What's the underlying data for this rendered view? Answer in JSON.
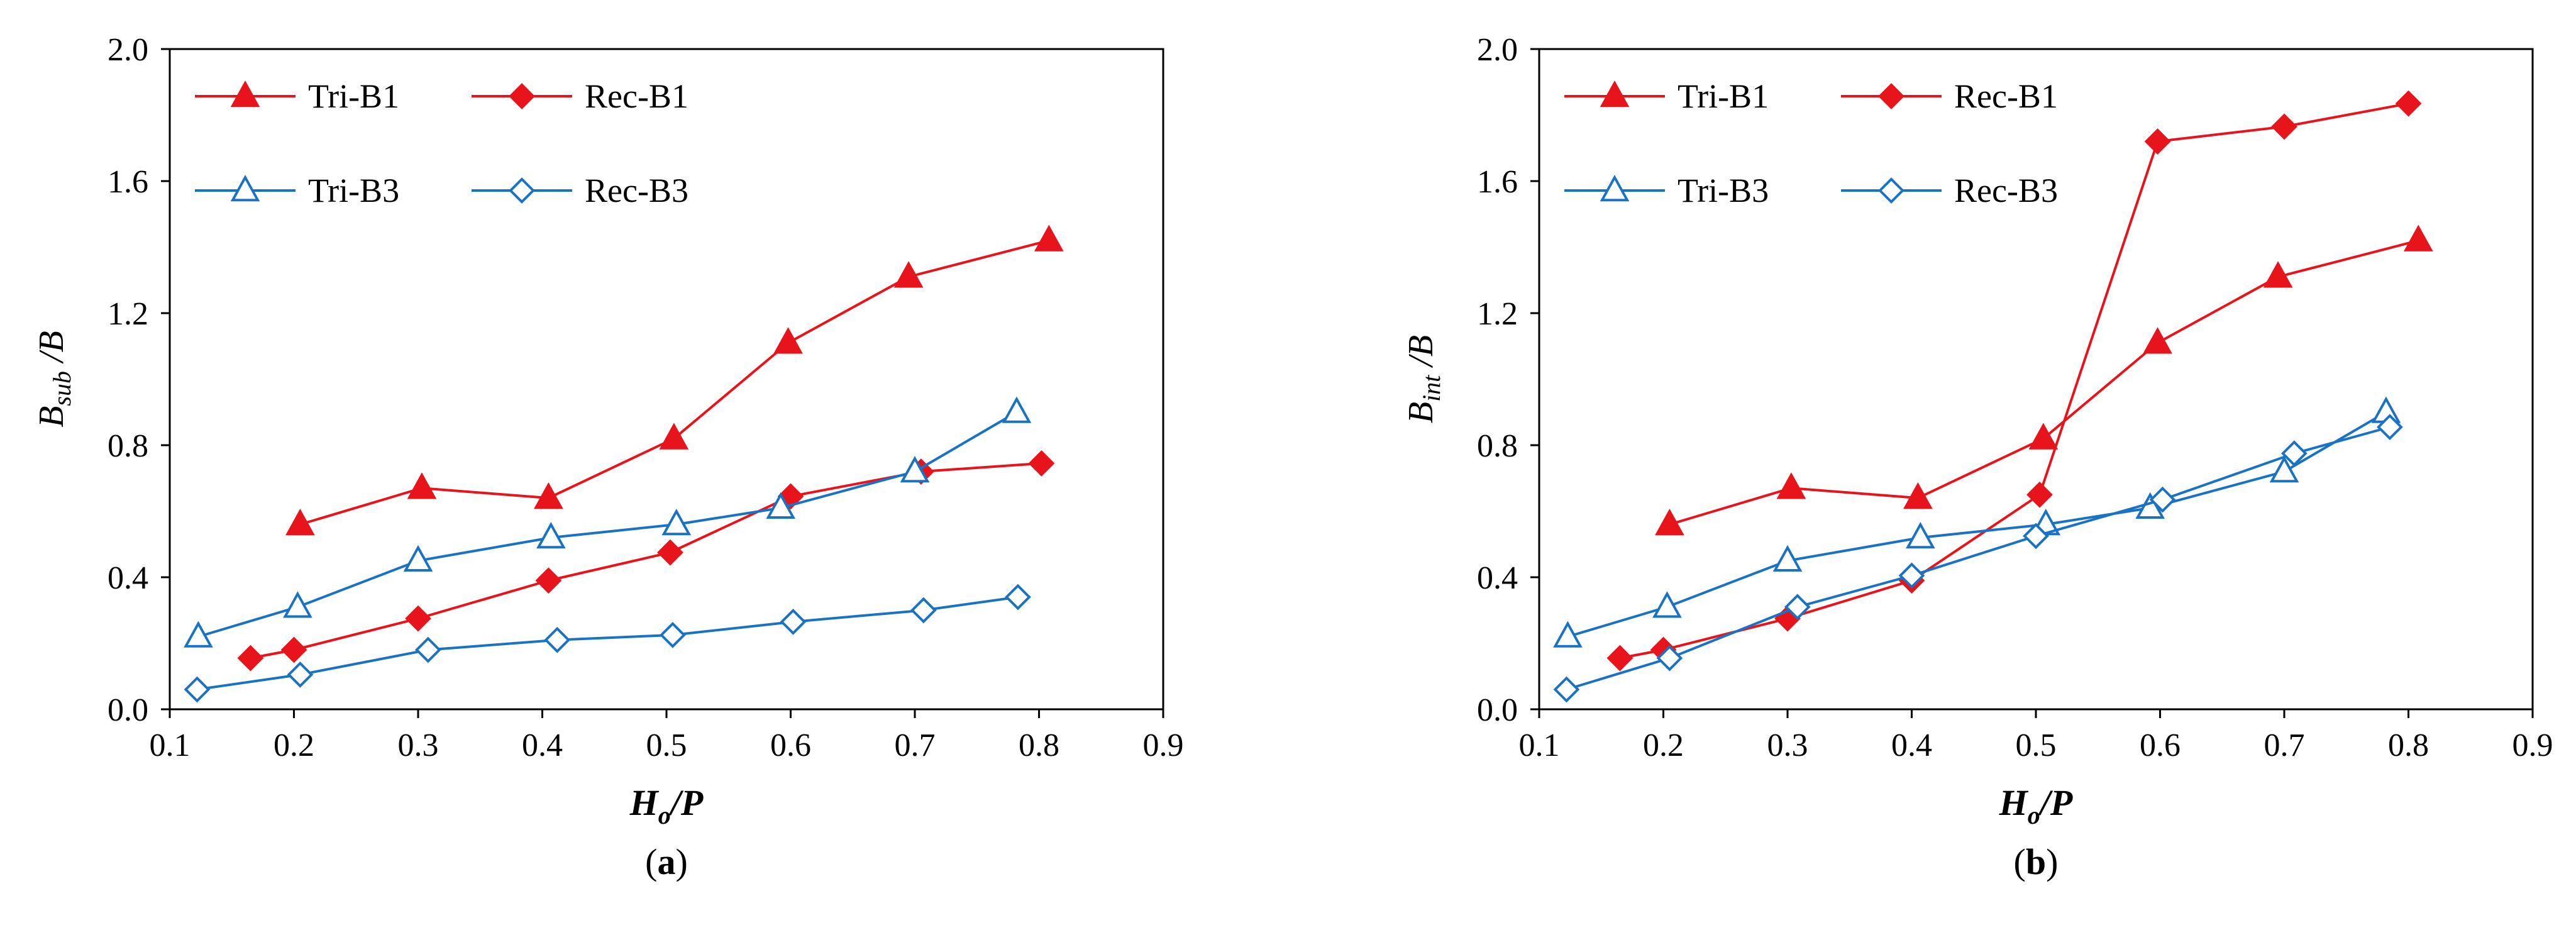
{
  "figure": {
    "panels": [
      {
        "id": "a",
        "label_parts": [
          "(",
          "a",
          ")"
        ],
        "ylabel_parts": {
          "main": "B",
          "sub": "sub",
          "tail": " /B"
        },
        "xlabel_parts": {
          "main": "H",
          "sub": "o",
          "tail": "/P"
        }
      },
      {
        "id": "b",
        "label_parts": [
          "(",
          "b",
          ")"
        ],
        "ylabel_parts": {
          "main": "B",
          "sub": "int",
          "tail": " /B"
        },
        "xlabel_parts": {
          "main": "H",
          "sub": "o",
          "tail": "/P"
        }
      }
    ]
  },
  "chart_data": [
    {
      "type": "line",
      "panel": "a",
      "title": "",
      "xlabel": "Ho/P",
      "ylabel": "Bsub /B",
      "xlim": [
        0.1,
        0.9
      ],
      "ylim": [
        0.0,
        2.0
      ],
      "xticks": [
        "0.1",
        "0.2",
        "0.3",
        "0.4",
        "0.5",
        "0.6",
        "0.7",
        "0.8",
        "0.9"
      ],
      "yticks": [
        "0.0",
        "0.4",
        "0.8",
        "1.2",
        "1.6",
        "2.0"
      ],
      "grid": false,
      "legend_position": "top-left",
      "series": [
        {
          "name": "Tri-B1",
          "color": "#e8141c",
          "marker": "triangle",
          "filled": true,
          "x": [
            0.205,
            0.303,
            0.405,
            0.506,
            0.598,
            0.695,
            0.808
          ],
          "y": [
            0.56,
            0.67,
            0.64,
            0.82,
            1.11,
            1.31,
            1.42
          ]
        },
        {
          "name": "Rec-B1",
          "color": "#e8141c",
          "marker": "diamond",
          "filled": true,
          "x": [
            0.165,
            0.2,
            0.3,
            0.405,
            0.503,
            0.6,
            0.705,
            0.802
          ],
          "y": [
            0.155,
            0.18,
            0.275,
            0.39,
            0.475,
            0.645,
            0.72,
            0.745
          ]
        },
        {
          "name": "Tri-B3",
          "color": "#1a73c2",
          "marker": "triangle",
          "filled": false,
          "x": [
            0.123,
            0.203,
            0.3,
            0.407,
            0.508,
            0.592,
            0.7,
            0.782
          ],
          "y": [
            0.22,
            0.31,
            0.45,
            0.52,
            0.56,
            0.61,
            0.72,
            0.9
          ]
        },
        {
          "name": "Rec-B3",
          "color": "#1a73c2",
          "marker": "diamond",
          "filled": false,
          "x": [
            0.122,
            0.205,
            0.308,
            0.412,
            0.505,
            0.602,
            0.707,
            0.783
          ],
          "y": [
            0.06,
            0.105,
            0.18,
            0.21,
            0.225,
            0.265,
            0.3,
            0.34
          ]
        }
      ]
    },
    {
      "type": "line",
      "panel": "b",
      "title": "",
      "xlabel": "Ho/P",
      "ylabel": "Bint /B",
      "xlim": [
        0.1,
        0.9
      ],
      "ylim": [
        0.0,
        2.0
      ],
      "xticks": [
        "0.1",
        "0.2",
        "0.3",
        "0.4",
        "0.5",
        "0.6",
        "0.7",
        "0.8",
        "0.9"
      ],
      "yticks": [
        "0.0",
        "0.4",
        "0.8",
        "1.2",
        "1.6",
        "2.0"
      ],
      "grid": false,
      "legend_position": "top-left",
      "series": [
        {
          "name": "Tri-B1",
          "color": "#e8141c",
          "marker": "triangle",
          "filled": true,
          "x": [
            0.205,
            0.303,
            0.405,
            0.506,
            0.598,
            0.695,
            0.808
          ],
          "y": [
            0.56,
            0.67,
            0.64,
            0.82,
            1.11,
            1.31,
            1.42
          ]
        },
        {
          "name": "Rec-B1",
          "color": "#e8141c",
          "marker": "diamond",
          "filled": true,
          "x": [
            0.165,
            0.2,
            0.3,
            0.4,
            0.503,
            0.598,
            0.7,
            0.8
          ],
          "y": [
            0.155,
            0.18,
            0.275,
            0.39,
            0.65,
            1.72,
            1.765,
            1.835
          ]
        },
        {
          "name": "Tri-B3",
          "color": "#1a73c2",
          "marker": "triangle",
          "filled": false,
          "x": [
            0.123,
            0.203,
            0.3,
            0.407,
            0.508,
            0.592,
            0.7,
            0.782
          ],
          "y": [
            0.22,
            0.31,
            0.45,
            0.52,
            0.56,
            0.61,
            0.72,
            0.9
          ]
        },
        {
          "name": "Rec-B3",
          "color": "#1a73c2",
          "marker": "diamond",
          "filled": false,
          "x": [
            0.122,
            0.205,
            0.308,
            0.4,
            0.5,
            0.602,
            0.708,
            0.785
          ],
          "y": [
            0.06,
            0.155,
            0.31,
            0.405,
            0.525,
            0.635,
            0.775,
            0.855
          ]
        }
      ]
    }
  ]
}
